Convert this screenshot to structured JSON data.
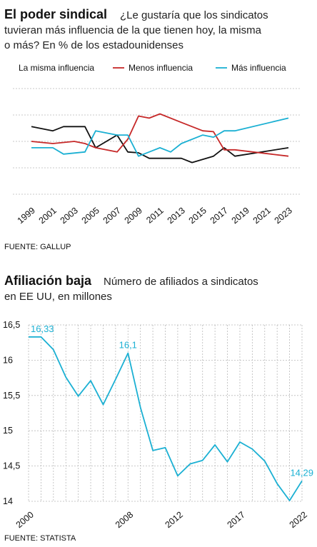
{
  "chart_data": [
    {
      "type": "line",
      "title": "El poder sindical",
      "subtitle_lines": [
        "¿Le gustaría que los sindicatos",
        "tuvieran más influencia de la que tienen hoy, la misma",
        "o más? En % de los estadounidenses"
      ],
      "x_tick_labels": [
        "1999",
        "2001",
        "2003",
        "2005",
        "2007",
        "2009",
        "2011",
        "2013",
        "2015",
        "2017",
        "2019",
        "2021",
        "2023"
      ],
      "x": [
        1999,
        2000,
        2001,
        2002,
        2003,
        2004,
        2005,
        2006,
        2007,
        2008,
        2009,
        2010,
        2011,
        2012,
        2013,
        2014,
        2015,
        2016,
        2017,
        2018,
        2019,
        2020,
        2021,
        2022,
        2023
      ],
      "series": [
        {
          "name": "La misma influencia",
          "color": "#111111",
          "points": [
            [
              1999,
              36
            ],
            [
              2001,
              35
            ],
            [
              2002,
              36
            ],
            [
              2004,
              36
            ],
            [
              2005,
              31
            ],
            [
              2007,
              34
            ],
            [
              2008,
              30
            ],
            [
              2009,
              29.8
            ],
            [
              2010,
              28.5
            ],
            [
              2011,
              28.5
            ],
            [
              2012,
              28.5
            ],
            [
              2013,
              28.5
            ],
            [
              2014,
              27.5
            ],
            [
              2016,
              29
            ],
            [
              2017,
              31
            ],
            [
              2018,
              29
            ],
            [
              2023,
              31
            ]
          ]
        },
        {
          "name": "Menos influencia",
          "color": "#c62828",
          "points": [
            [
              1999,
              32.5
            ],
            [
              2001,
              32
            ],
            [
              2003,
              32.5
            ],
            [
              2004,
              32
            ],
            [
              2005,
              31
            ],
            [
              2007,
              30
            ],
            [
              2008,
              33
            ],
            [
              2009,
              38.5
            ],
            [
              2010,
              38
            ],
            [
              2011,
              39
            ],
            [
              2013,
              37
            ],
            [
              2015,
              35
            ],
            [
              2016,
              34.8
            ],
            [
              2017,
              30.5
            ],
            [
              2018,
              30.5
            ],
            [
              2023,
              29
            ]
          ]
        },
        {
          "name": "Más influencia",
          "color": "#1bb0d3",
          "points": [
            [
              1999,
              31
            ],
            [
              2001,
              31
            ],
            [
              2002,
              29.5
            ],
            [
              2004,
              30
            ],
            [
              2005,
              35
            ],
            [
              2007,
              34
            ],
            [
              2008,
              34
            ],
            [
              2009,
              29
            ],
            [
              2010,
              30
            ],
            [
              2011,
              31
            ],
            [
              2012,
              30
            ],
            [
              2013,
              32
            ],
            [
              2015,
              34
            ],
            [
              2016,
              33.5
            ],
            [
              2017,
              35
            ],
            [
              2018,
              35
            ],
            [
              2023,
              38
            ]
          ]
        }
      ],
      "ylim": [
        20,
        45
      ],
      "grid": true,
      "legend": "top"
    },
    {
      "type": "line",
      "title": "Afiliación baja",
      "subtitle_lines": [
        "Número de afiliados a sindicatos",
        "en EE UU, en millones"
      ],
      "color": "#1bb0d3",
      "x": [
        2000,
        2001,
        2002,
        2003,
        2004,
        2005,
        2006,
        2007,
        2008,
        2009,
        2010,
        2011,
        2012,
        2013,
        2014,
        2015,
        2016,
        2017,
        2018,
        2019,
        2020,
        2021,
        2022
      ],
      "values": [
        16.33,
        16.33,
        16.15,
        15.76,
        15.49,
        15.71,
        15.37,
        15.73,
        16.1,
        15.33,
        14.72,
        14.76,
        14.36,
        14.53,
        14.58,
        14.8,
        14.56,
        14.84,
        14.74,
        14.57,
        14.25,
        14.01,
        14.29
      ],
      "x_tick_labels": [
        "2000",
        "2008",
        "2012",
        "2017",
        "2022"
      ],
      "x_ticks": [
        2000,
        2008,
        2012,
        2017,
        2022
      ],
      "y_ticks": [
        14,
        14.5,
        15,
        15.5,
        16,
        16.5
      ],
      "y_tick_labels": [
        "14",
        "14,5",
        "15",
        "15,5",
        "16",
        "16,5"
      ],
      "ylim": [
        14,
        16.5
      ],
      "annotations": [
        {
          "x": 2000,
          "text": "16,33"
        },
        {
          "x": 2008,
          "text": "16,1"
        },
        {
          "x": 2022,
          "text": "14,29"
        }
      ],
      "grid": true
    }
  ],
  "sources": {
    "chart1": "FUENTE: GALLUP",
    "chart2": "FUENTE: STATISTA"
  }
}
